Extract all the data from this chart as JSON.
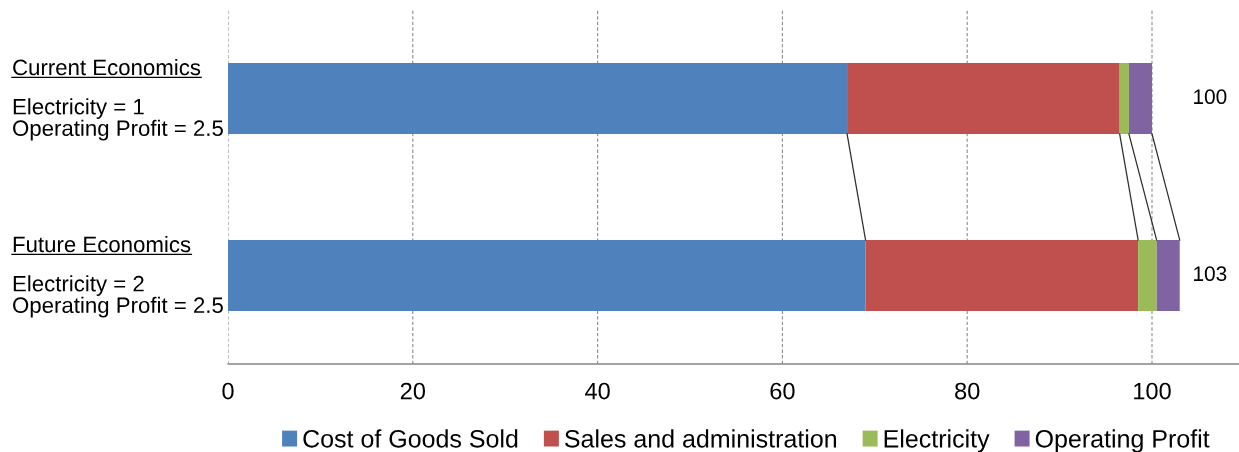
{
  "chart_data": {
    "type": "bar",
    "orientation": "horizontal",
    "stacked": true,
    "categories": [
      "Current Economics\n\nElectricity = 1\nOperating Profit = 2.5",
      "Future Economics\n\nElectricity = 2\nOperating Profit = 2.5"
    ],
    "series": [
      {
        "name": "Cost of Goods Sold",
        "color": "#4f81bd",
        "values": [
          67,
          69
        ]
      },
      {
        "name": "Sales and administration",
        "color": "#c0504d",
        "values": [
          29.5,
          29.5
        ]
      },
      {
        "name": "Electricity",
        "color": "#9bbb59",
        "values": [
          1,
          2
        ]
      },
      {
        "name": "Operating Profit",
        "color": "#8064a2",
        "values": [
          2.5,
          2.5
        ]
      }
    ],
    "totals": [
      "100",
      "103"
    ],
    "xlim": [
      0,
      110
    ],
    "xticks": [
      0,
      20,
      40,
      60,
      80,
      100
    ],
    "grid": "x",
    "legend": "bottom"
  }
}
